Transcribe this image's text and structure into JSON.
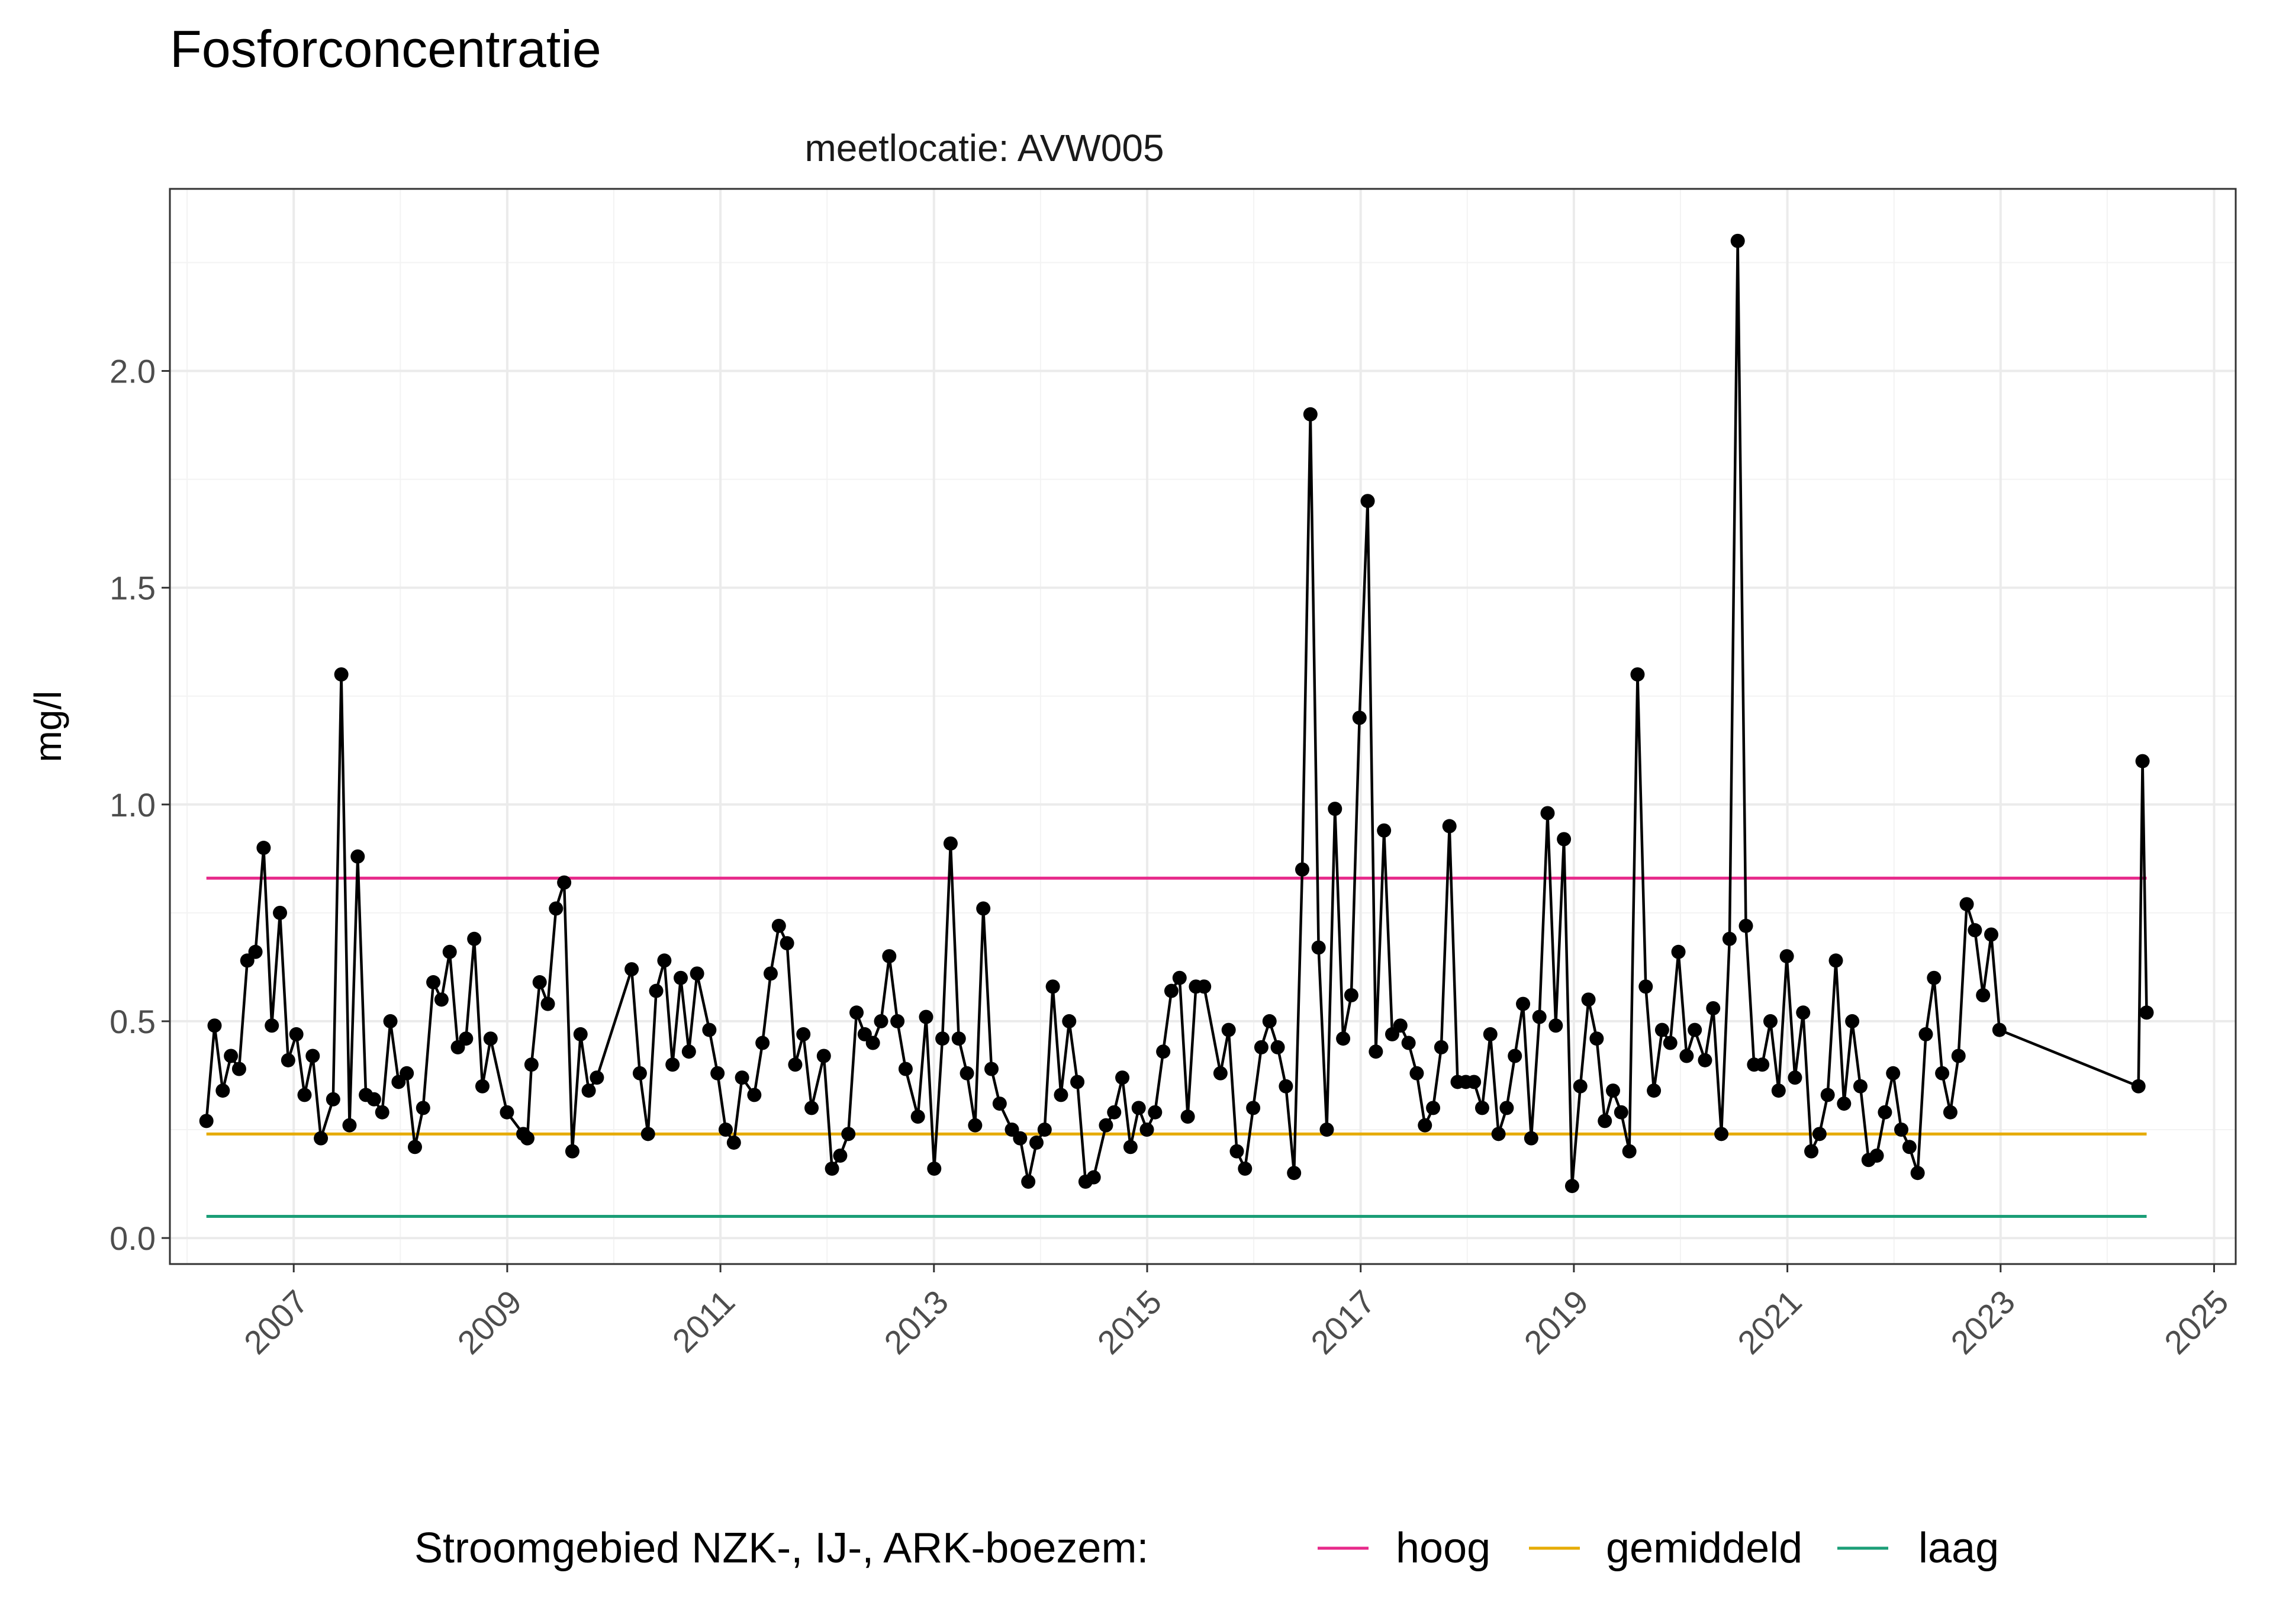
{
  "chart_data": {
    "type": "line",
    "title": "Fosforconcentratie",
    "facet_label": "meetlocatie: AVW005",
    "xlabel": "",
    "ylabel": "mg/l",
    "xlim": [
      "2005-11-03",
      "2025-03-16"
    ],
    "ylim": [
      -0.06,
      2.42
    ],
    "x_ticks": [
      "2007",
      "2009",
      "2011",
      "2013",
      "2015",
      "2017",
      "2019",
      "2021",
      "2023",
      "2025"
    ],
    "y_ticks": [
      "0.0",
      "0.5",
      "1.0",
      "1.5",
      "2.0"
    ],
    "grid": true,
    "legend_position": "bottom",
    "legend_title": "Stroomgebied NZK-, IJ-, ARK-boezem:",
    "reference_lines": [
      {
        "name": "hoog",
        "value": 0.83,
        "color": "#e7298a",
        "x_range": [
          "2006-03-08",
          "2024-05-15"
        ]
      },
      {
        "name": "gemiddeld",
        "value": 0.24,
        "color": "#e6ab02",
        "x_range": [
          "2006-03-08",
          "2024-05-15"
        ]
      },
      {
        "name": "laag",
        "value": 0.05,
        "color": "#1b9e77",
        "x_range": [
          "2006-03-08",
          "2024-05-15"
        ]
      }
    ],
    "series": [
      {
        "color": "#000000",
        "points": [
          [
            "2006-03-08",
            0.27
          ],
          [
            "2006-04-05",
            0.49
          ],
          [
            "2006-05-03",
            0.34
          ],
          [
            "2006-05-31",
            0.42
          ],
          [
            "2006-06-28",
            0.39
          ],
          [
            "2006-07-26",
            0.64
          ],
          [
            "2006-08-23",
            0.66
          ],
          [
            "2006-09-20",
            0.9
          ],
          [
            "2006-10-18",
            0.49
          ],
          [
            "2006-11-15",
            0.75
          ],
          [
            "2006-12-13",
            0.41
          ],
          [
            "2007-01-10",
            0.47
          ],
          [
            "2007-02-07",
            0.33
          ],
          [
            "2007-03-07",
            0.42
          ],
          [
            "2007-04-04",
            0.23
          ],
          [
            "2007-05-16",
            0.32
          ],
          [
            "2007-06-13",
            1.3
          ],
          [
            "2007-07-11",
            0.26
          ],
          [
            "2007-08-08",
            0.88
          ],
          [
            "2007-09-05",
            0.33
          ],
          [
            "2007-10-03",
            0.32
          ],
          [
            "2007-10-31",
            0.29
          ],
          [
            "2007-11-28",
            0.5
          ],
          [
            "2007-12-26",
            0.36
          ],
          [
            "2008-01-23",
            0.38
          ],
          [
            "2008-02-20",
            0.21
          ],
          [
            "2008-03-19",
            0.3
          ],
          [
            "2008-04-23",
            0.59
          ],
          [
            "2008-05-21",
            0.55
          ],
          [
            "2008-06-18",
            0.66
          ],
          [
            "2008-07-16",
            0.44
          ],
          [
            "2008-08-13",
            0.46
          ],
          [
            "2008-09-10",
            0.69
          ],
          [
            "2008-10-08",
            0.35
          ],
          [
            "2008-11-05",
            0.46
          ],
          [
            "2008-12-31",
            0.29
          ],
          [
            "2009-02-25",
            0.24
          ],
          [
            "2009-03-11",
            0.23
          ],
          [
            "2009-03-25",
            0.4
          ],
          [
            "2009-04-22",
            0.59
          ],
          [
            "2009-05-20",
            0.54
          ],
          [
            "2009-06-17",
            0.76
          ],
          [
            "2009-07-15",
            0.82
          ],
          [
            "2009-08-12",
            0.2
          ],
          [
            "2009-09-09",
            0.47
          ],
          [
            "2009-10-07",
            0.34
          ],
          [
            "2009-11-04",
            0.37
          ],
          [
            "2010-03-03",
            0.62
          ],
          [
            "2010-03-31",
            0.38
          ],
          [
            "2010-04-28",
            0.24
          ],
          [
            "2010-05-26",
            0.57
          ],
          [
            "2010-06-23",
            0.64
          ],
          [
            "2010-07-21",
            0.4
          ],
          [
            "2010-08-18",
            0.6
          ],
          [
            "2010-09-15",
            0.43
          ],
          [
            "2010-10-13",
            0.61
          ],
          [
            "2010-11-24",
            0.48
          ],
          [
            "2010-12-22",
            0.38
          ],
          [
            "2011-01-19",
            0.25
          ],
          [
            "2011-02-16",
            0.22
          ],
          [
            "2011-03-16",
            0.37
          ],
          [
            "2011-04-27",
            0.33
          ],
          [
            "2011-05-25",
            0.45
          ],
          [
            "2011-06-22",
            0.61
          ],
          [
            "2011-07-20",
            0.72
          ],
          [
            "2011-08-17",
            0.68
          ],
          [
            "2011-09-14",
            0.4
          ],
          [
            "2011-10-12",
            0.47
          ],
          [
            "2011-11-09",
            0.3
          ],
          [
            "2011-12-21",
            0.42
          ],
          [
            "2012-01-18",
            0.16
          ],
          [
            "2012-02-15",
            0.19
          ],
          [
            "2012-03-14",
            0.24
          ],
          [
            "2012-04-11",
            0.52
          ],
          [
            "2012-05-09",
            0.47
          ],
          [
            "2012-06-06",
            0.45
          ],
          [
            "2012-07-04",
            0.5
          ],
          [
            "2012-08-01",
            0.65
          ],
          [
            "2012-08-29",
            0.5
          ],
          [
            "2012-09-26",
            0.39
          ],
          [
            "2012-11-07",
            0.28
          ],
          [
            "2012-12-05",
            0.51
          ],
          [
            "2013-01-02",
            0.16
          ],
          [
            "2013-01-30",
            0.46
          ],
          [
            "2013-02-27",
            0.91
          ],
          [
            "2013-03-27",
            0.46
          ],
          [
            "2013-04-24",
            0.38
          ],
          [
            "2013-05-22",
            0.26
          ],
          [
            "2013-06-19",
            0.76
          ],
          [
            "2013-07-17",
            0.39
          ],
          [
            "2013-08-14",
            0.31
          ],
          [
            "2013-09-25",
            0.25
          ],
          [
            "2013-10-23",
            0.23
          ],
          [
            "2013-11-20",
            0.13
          ],
          [
            "2013-12-18",
            0.22
          ],
          [
            "2014-01-15",
            0.25
          ],
          [
            "2014-02-12",
            0.58
          ],
          [
            "2014-03-12",
            0.33
          ],
          [
            "2014-04-09",
            0.5
          ],
          [
            "2014-05-07",
            0.36
          ],
          [
            "2014-06-04",
            0.13
          ],
          [
            "2014-07-02",
            0.14
          ],
          [
            "2014-08-13",
            0.26
          ],
          [
            "2014-09-10",
            0.29
          ],
          [
            "2014-10-08",
            0.37
          ],
          [
            "2014-11-05",
            0.21
          ],
          [
            "2014-12-03",
            0.3
          ],
          [
            "2014-12-31",
            0.25
          ],
          [
            "2015-01-28",
            0.29
          ],
          [
            "2015-02-25",
            0.43
          ],
          [
            "2015-03-25",
            0.57
          ],
          [
            "2015-04-22",
            0.6
          ],
          [
            "2015-05-20",
            0.28
          ],
          [
            "2015-06-17",
            0.58
          ],
          [
            "2015-07-15",
            0.58
          ],
          [
            "2015-09-09",
            0.38
          ],
          [
            "2015-10-07",
            0.48
          ],
          [
            "2015-11-04",
            0.2
          ],
          [
            "2015-12-02",
            0.16
          ],
          [
            "2015-12-30",
            0.3
          ],
          [
            "2016-01-27",
            0.44
          ],
          [
            "2016-02-24",
            0.5
          ],
          [
            "2016-03-23",
            0.44
          ],
          [
            "2016-04-20",
            0.35
          ],
          [
            "2016-05-18",
            0.15
          ],
          [
            "2016-06-15",
            0.85
          ],
          [
            "2016-07-13",
            1.9
          ],
          [
            "2016-08-10",
            0.67
          ],
          [
            "2016-09-07",
            0.25
          ],
          [
            "2016-10-05",
            0.99
          ],
          [
            "2016-11-02",
            0.46
          ],
          [
            "2016-11-30",
            0.56
          ],
          [
            "2016-12-28",
            1.2
          ],
          [
            "2017-01-25",
            1.7
          ],
          [
            "2017-02-22",
            0.43
          ],
          [
            "2017-03-22",
            0.94
          ],
          [
            "2017-04-19",
            0.47
          ],
          [
            "2017-05-17",
            0.49
          ],
          [
            "2017-06-14",
            0.45
          ],
          [
            "2017-07-12",
            0.38
          ],
          [
            "2017-08-09",
            0.26
          ],
          [
            "2017-09-06",
            0.3
          ],
          [
            "2017-10-04",
            0.44
          ],
          [
            "2017-11-01",
            0.95
          ],
          [
            "2017-11-29",
            0.36
          ],
          [
            "2017-12-27",
            0.36
          ],
          [
            "2018-01-24",
            0.36
          ],
          [
            "2018-02-21",
            0.3
          ],
          [
            "2018-03-21",
            0.47
          ],
          [
            "2018-04-18",
            0.24
          ],
          [
            "2018-05-16",
            0.3
          ],
          [
            "2018-06-13",
            0.42
          ],
          [
            "2018-07-11",
            0.54
          ],
          [
            "2018-08-08",
            0.23
          ],
          [
            "2018-09-05",
            0.51
          ],
          [
            "2018-10-03",
            0.98
          ],
          [
            "2018-10-31",
            0.49
          ],
          [
            "2018-11-28",
            0.92
          ],
          [
            "2018-12-26",
            0.12
          ],
          [
            "2019-01-23",
            0.35
          ],
          [
            "2019-02-20",
            0.55
          ],
          [
            "2019-03-20",
            0.46
          ],
          [
            "2019-04-17",
            0.27
          ],
          [
            "2019-05-15",
            0.34
          ],
          [
            "2019-06-12",
            0.29
          ],
          [
            "2019-07-10",
            0.2
          ],
          [
            "2019-08-07",
            1.3
          ],
          [
            "2019-09-04",
            0.58
          ],
          [
            "2019-10-02",
            0.34
          ],
          [
            "2019-10-30",
            0.48
          ],
          [
            "2019-11-27",
            0.45
          ],
          [
            "2019-12-25",
            0.66
          ],
          [
            "2020-01-22",
            0.42
          ],
          [
            "2020-02-19",
            0.48
          ],
          [
            "2020-03-25",
            0.41
          ],
          [
            "2020-04-22",
            0.53
          ],
          [
            "2020-05-20",
            0.24
          ],
          [
            "2020-06-17",
            0.69
          ],
          [
            "2020-07-15",
            2.3
          ],
          [
            "2020-08-12",
            0.72
          ],
          [
            "2020-09-09",
            0.4
          ],
          [
            "2020-10-07",
            0.4
          ],
          [
            "2020-11-04",
            0.5
          ],
          [
            "2020-12-02",
            0.34
          ],
          [
            "2020-12-30",
            0.65
          ],
          [
            "2021-01-27",
            0.37
          ],
          [
            "2021-02-24",
            0.52
          ],
          [
            "2021-03-24",
            0.2
          ],
          [
            "2021-04-21",
            0.24
          ],
          [
            "2021-05-19",
            0.33
          ],
          [
            "2021-06-16",
            0.64
          ],
          [
            "2021-07-14",
            0.31
          ],
          [
            "2021-08-11",
            0.5
          ],
          [
            "2021-09-08",
            0.35
          ],
          [
            "2021-10-06",
            0.18
          ],
          [
            "2021-11-03",
            0.19
          ],
          [
            "2021-12-01",
            0.29
          ],
          [
            "2021-12-29",
            0.38
          ],
          [
            "2022-01-26",
            0.25
          ],
          [
            "2022-02-23",
            0.21
          ],
          [
            "2022-03-23",
            0.15
          ],
          [
            "2022-04-20",
            0.47
          ],
          [
            "2022-05-18",
            0.6
          ],
          [
            "2022-06-15",
            0.38
          ],
          [
            "2022-07-13",
            0.29
          ],
          [
            "2022-08-10",
            0.42
          ],
          [
            "2022-09-07",
            0.77
          ],
          [
            "2022-10-05",
            0.71
          ],
          [
            "2022-11-02",
            0.56
          ],
          [
            "2022-11-30",
            0.7
          ],
          [
            "2022-12-28",
            0.48
          ],
          [
            "2024-04-17",
            0.35
          ],
          [
            "2024-05-01",
            1.1
          ],
          [
            "2024-05-15",
            0.52
          ]
        ]
      }
    ]
  }
}
